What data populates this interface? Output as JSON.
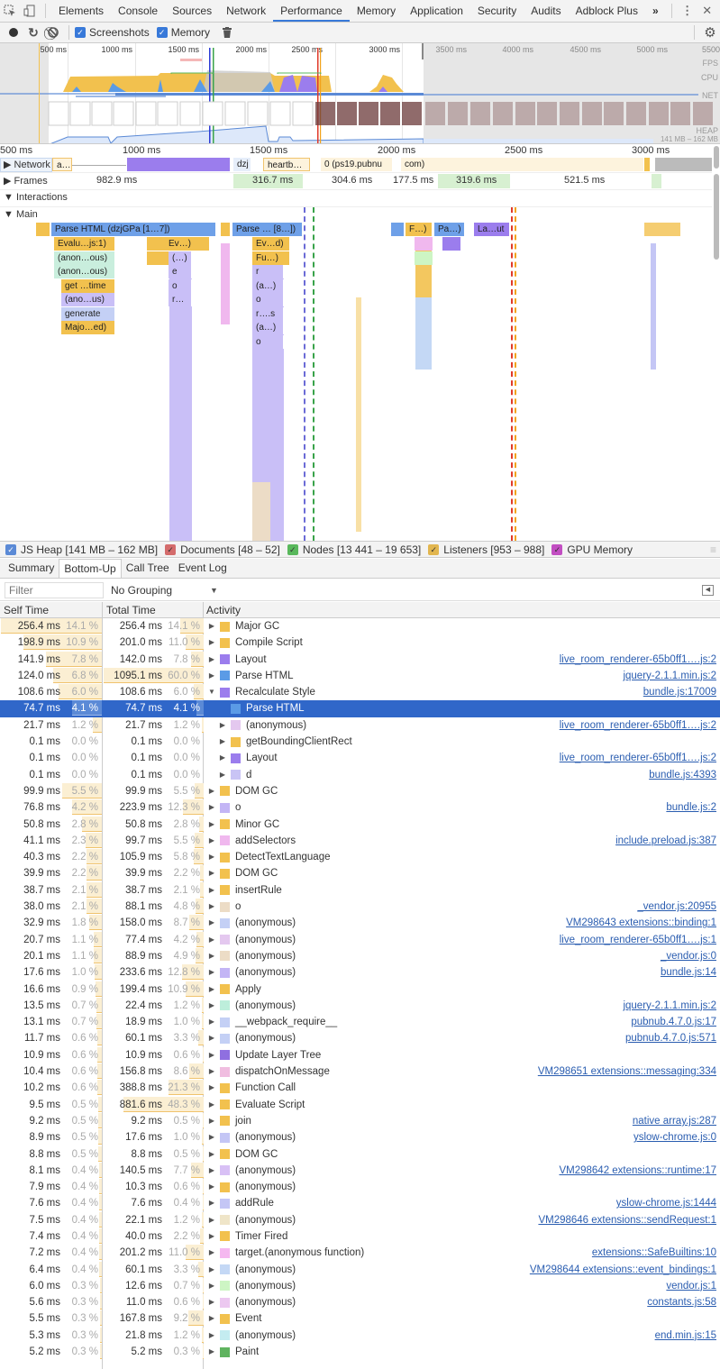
{
  "tabs": {
    "items": [
      "Elements",
      "Console",
      "Sources",
      "Network",
      "Performance",
      "Memory",
      "Application",
      "Security",
      "Audits",
      "Adblock Plus"
    ],
    "active": "Performance",
    "more": "»"
  },
  "toolbar": {
    "screenshots_label": "Screenshots",
    "memory_label": "Memory"
  },
  "overview": {
    "ticks": [
      "500 ms",
      "1000 ms",
      "1500 ms",
      "2000 ms",
      "2500 ms",
      "3000 ms",
      "3500 ms",
      "4000 ms",
      "4500 ms",
      "5000 ms",
      "5500"
    ],
    "labels": {
      "fps": "FPS",
      "cpu": "CPU",
      "net": "NET",
      "heap": "HEAP",
      "heap_range": "141 MB – 162 MB"
    }
  },
  "ruler": {
    "ticks": [
      "500 ms",
      "1000 ms",
      "1500 ms",
      "2000 ms",
      "2500 ms",
      "3000 ms"
    ]
  },
  "tracks": {
    "network": {
      "label": "Network",
      "items": [
        "a…",
        "dzj",
        "heartb…",
        "0 (ps19.pubnu",
        "com)"
      ]
    },
    "frames": {
      "label": "Frames",
      "values": [
        "982.9 ms",
        "316.7 ms",
        "304.6 ms",
        "177.5 ms",
        "319.6 ms",
        "521.5 ms"
      ]
    },
    "interactions": {
      "label": "Interactions"
    },
    "main": {
      "label": "Main"
    }
  },
  "flame": {
    "row1": [
      "Parse HTML (dzjGPa [1…7])",
      "Parse … [8…])",
      "F…)",
      "Pa…)",
      "La…ut"
    ],
    "col1": [
      "Evalu…js:1)",
      "(anon…ous)",
      "(anon…ous)",
      "get …time",
      "(ano…us)",
      "generate",
      "Majo…ed)"
    ],
    "col2": [
      "Ev…)",
      "(…)",
      "e",
      "o",
      "r…"
    ],
    "col3": [
      "Ev…d)",
      "Fu…)",
      "r",
      "(a…)",
      "o",
      "r….s",
      "(a…)",
      "o"
    ]
  },
  "legend": {
    "items": [
      {
        "label": "JS Heap [141 MB – 162 MB]",
        "color": "#5b8ad6"
      },
      {
        "label": "Documents [48 – 52]",
        "color": "#d46c6c"
      },
      {
        "label": "Nodes [13 441 – 19 653]",
        "color": "#59b85c"
      },
      {
        "label": "Listeners [953 – 988]",
        "color": "#e2b64f"
      },
      {
        "label": "GPU Memory",
        "color": "#c24ec2"
      }
    ]
  },
  "subtabs": {
    "items": [
      "Summary",
      "Bottom-Up",
      "Call Tree",
      "Event Log"
    ],
    "active": "Bottom-Up"
  },
  "filter": {
    "placeholder": "Filter",
    "grouping": "No Grouping"
  },
  "table": {
    "headers": {
      "self": "Self Time",
      "total": "Total Time",
      "activity": "Activity"
    },
    "rows": [
      {
        "self": "256.4 ms",
        "self_pct": "14.1 %",
        "total": "256.4 ms",
        "total_pct": "14.1 %",
        "activity": "Major GC",
        "color": "#f2c14e",
        "source": "",
        "expanded": false,
        "indent": 0
      },
      {
        "self": "198.9 ms",
        "self_pct": "10.9 %",
        "total": "201.0 ms",
        "total_pct": "11.0 %",
        "activity": "Compile Script",
        "color": "#f2c14e",
        "source": "",
        "indent": 0
      },
      {
        "self": "141.9 ms",
        "self_pct": "7.8 %",
        "total": "142.0 ms",
        "total_pct": "7.8 %",
        "activity": "Layout",
        "color": "#9b7ded",
        "source": "live_room_renderer-65b0ff1….js:2",
        "indent": 0
      },
      {
        "self": "124.0 ms",
        "self_pct": "6.8 %",
        "total": "1095.1 ms",
        "total_pct": "60.0 %",
        "activity": "Parse HTML",
        "color": "#5b9be6",
        "source": "jquery-2.1.1.min.js:2",
        "indent": 0
      },
      {
        "self": "108.6 ms",
        "self_pct": "6.0 %",
        "total": "108.6 ms",
        "total_pct": "6.0 %",
        "activity": "Recalculate Style",
        "color": "#9b7ded",
        "source": "bundle.js:17009",
        "indent": 0,
        "expanded": true
      },
      {
        "self": "74.7 ms",
        "self_pct": "4.1 %",
        "total": "74.7 ms",
        "total_pct": "4.1 %",
        "activity": "Parse HTML",
        "color": "#5b9be6",
        "source": "",
        "indent": 1,
        "selected": true,
        "leaf": true
      },
      {
        "self": "21.7 ms",
        "self_pct": "1.2 %",
        "total": "21.7 ms",
        "total_pct": "1.2 %",
        "activity": "(anonymous)",
        "color": "#e4c8ef",
        "source": "live_room_renderer-65b0ff1….js:2",
        "indent": 1
      },
      {
        "self": "0.1 ms",
        "self_pct": "0.0 %",
        "total": "0.1 ms",
        "total_pct": "0.0 %",
        "activity": "getBoundingClientRect",
        "color": "#f2c14e",
        "source": "",
        "indent": 1
      },
      {
        "self": "0.1 ms",
        "self_pct": "0.0 %",
        "total": "0.1 ms",
        "total_pct": "0.0 %",
        "activity": "Layout",
        "color": "#9b7ded",
        "source": "live_room_renderer-65b0ff1….js:2",
        "indent": 1
      },
      {
        "self": "0.1 ms",
        "self_pct": "0.0 %",
        "total": "0.1 ms",
        "total_pct": "0.0 %",
        "activity": "d",
        "color": "#c9c4f5",
        "source": "bundle.js:4393",
        "indent": 1
      },
      {
        "self": "99.9 ms",
        "self_pct": "5.5 %",
        "total": "99.9 ms",
        "total_pct": "5.5 %",
        "activity": "DOM GC",
        "color": "#f2c14e",
        "source": "",
        "indent": 0
      },
      {
        "self": "76.8 ms",
        "self_pct": "4.2 %",
        "total": "223.9 ms",
        "total_pct": "12.3 %",
        "activity": "o",
        "color": "#c3b5f5",
        "source": "bundle.js:2",
        "indent": 0
      },
      {
        "self": "50.8 ms",
        "self_pct": "2.8 %",
        "total": "50.8 ms",
        "total_pct": "2.8 %",
        "activity": "Minor GC",
        "color": "#f2c14e",
        "source": "",
        "indent": 0
      },
      {
        "self": "41.1 ms",
        "self_pct": "2.3 %",
        "total": "99.7 ms",
        "total_pct": "5.5 %",
        "activity": "addSelectors",
        "color": "#f0b8ee",
        "source": "include.preload.js:387",
        "indent": 0
      },
      {
        "self": "40.3 ms",
        "self_pct": "2.2 %",
        "total": "105.9 ms",
        "total_pct": "5.8 %",
        "activity": "DetectTextLanguage",
        "color": "#f2c14e",
        "source": "",
        "indent": 0
      },
      {
        "self": "39.9 ms",
        "self_pct": "2.2 %",
        "total": "39.9 ms",
        "total_pct": "2.2 %",
        "activity": "DOM GC",
        "color": "#f2c14e",
        "source": "",
        "indent": 0
      },
      {
        "self": "38.7 ms",
        "self_pct": "2.1 %",
        "total": "38.7 ms",
        "total_pct": "2.1 %",
        "activity": "insertRule",
        "color": "#f2c14e",
        "source": "",
        "indent": 0
      },
      {
        "self": "38.0 ms",
        "self_pct": "2.1 %",
        "total": "88.1 ms",
        "total_pct": "4.8 %",
        "activity": "o",
        "color": "#ecdcc6",
        "source": "_vendor.js:20955",
        "indent": 0
      },
      {
        "self": "32.9 ms",
        "self_pct": "1.8 %",
        "total": "158.0 ms",
        "total_pct": "8.7 %",
        "activity": "(anonymous)",
        "color": "#c4d0f5",
        "source": "VM298643 extensions::binding:1",
        "indent": 0
      },
      {
        "self": "20.7 ms",
        "self_pct": "1.1 %",
        "total": "77.4 ms",
        "total_pct": "4.2 %",
        "activity": "(anonymous)",
        "color": "#e4c8ef",
        "source": "live_room_renderer-65b0ff1….js:1",
        "indent": 0
      },
      {
        "self": "20.1 ms",
        "self_pct": "1.1 %",
        "total": "88.9 ms",
        "total_pct": "4.9 %",
        "activity": "(anonymous)",
        "color": "#ecdcc6",
        "source": "_vendor.js:0",
        "indent": 0
      },
      {
        "self": "17.6 ms",
        "self_pct": "1.0 %",
        "total": "233.6 ms",
        "total_pct": "12.8 %",
        "activity": "(anonymous)",
        "color": "#c3b5f5",
        "source": "bundle.js:14",
        "indent": 0
      },
      {
        "self": "16.6 ms",
        "self_pct": "0.9 %",
        "total": "199.4 ms",
        "total_pct": "10.9 %",
        "activity": "Apply",
        "color": "#f2c14e",
        "source": "",
        "indent": 0
      },
      {
        "self": "13.5 ms",
        "self_pct": "0.7 %",
        "total": "22.4 ms",
        "total_pct": "1.2 %",
        "activity": "(anonymous)",
        "color": "#bdeedb",
        "source": "jquery-2.1.1.min.js:2",
        "indent": 0
      },
      {
        "self": "13.1 ms",
        "self_pct": "0.7 %",
        "total": "18.9 ms",
        "total_pct": "1.0 %",
        "activity": "__webpack_require__",
        "color": "#c4d0f5",
        "source": "pubnub.4.7.0.js:17",
        "indent": 0
      },
      {
        "self": "11.7 ms",
        "self_pct": "0.6 %",
        "total": "60.1 ms",
        "total_pct": "3.3 %",
        "activity": "(anonymous)",
        "color": "#c4d0f5",
        "source": "pubnub.4.7.0.js:571",
        "indent": 0
      },
      {
        "self": "10.9 ms",
        "self_pct": "0.6 %",
        "total": "10.9 ms",
        "total_pct": "0.6 %",
        "activity": "Update Layer Tree",
        "color": "#8f6fe0",
        "source": "",
        "indent": 0
      },
      {
        "self": "10.4 ms",
        "self_pct": "0.6 %",
        "total": "156.8 ms",
        "total_pct": "8.6 %",
        "activity": "dispatchOnMessage",
        "color": "#f0bde0",
        "source": "VM298651 extensions::messaging:334",
        "indent": 0
      },
      {
        "self": "10.2 ms",
        "self_pct": "0.6 %",
        "total": "388.8 ms",
        "total_pct": "21.3 %",
        "activity": "Function Call",
        "color": "#f2c14e",
        "source": "",
        "indent": 0
      },
      {
        "self": "9.5 ms",
        "self_pct": "0.5 %",
        "total": "881.6 ms",
        "total_pct": "48.3 %",
        "activity": "Evaluate Script",
        "color": "#f2c14e",
        "source": "",
        "indent": 0
      },
      {
        "self": "9.2 ms",
        "self_pct": "0.5 %",
        "total": "9.2 ms",
        "total_pct": "0.5 %",
        "activity": "join",
        "color": "#f2c14e",
        "source": "native array.js:287",
        "indent": 0
      },
      {
        "self": "8.9 ms",
        "self_pct": "0.5 %",
        "total": "17.6 ms",
        "total_pct": "1.0 %",
        "activity": "(anonymous)",
        "color": "#c4c6f5",
        "source": "yslow-chrome.js:0",
        "indent": 0
      },
      {
        "self": "8.8 ms",
        "self_pct": "0.5 %",
        "total": "8.8 ms",
        "total_pct": "0.5 %",
        "activity": "DOM GC",
        "color": "#f2c14e",
        "source": "",
        "indent": 0
      },
      {
        "self": "8.1 ms",
        "self_pct": "0.4 %",
        "total": "140.5 ms",
        "total_pct": "7.7 %",
        "activity": "(anonymous)",
        "color": "#d8c0f5",
        "source": "VM298642 extensions::runtime:17",
        "indent": 0
      },
      {
        "self": "7.9 ms",
        "self_pct": "0.4 %",
        "total": "10.3 ms",
        "total_pct": "0.6 %",
        "activity": "(anonymous)",
        "color": "#f2c14e",
        "source": "",
        "indent": 0
      },
      {
        "self": "7.6 ms",
        "self_pct": "0.4 %",
        "total": "7.6 ms",
        "total_pct": "0.4 %",
        "activity": "addRule",
        "color": "#c4c6f5",
        "source": "yslow-chrome.js:1444",
        "indent": 0
      },
      {
        "self": "7.5 ms",
        "self_pct": "0.4 %",
        "total": "22.1 ms",
        "total_pct": "1.2 %",
        "activity": "(anonymous)",
        "color": "#efe5c8",
        "source": "VM298646 extensions::sendRequest:1",
        "indent": 0
      },
      {
        "self": "7.4 ms",
        "self_pct": "0.4 %",
        "total": "40.0 ms",
        "total_pct": "2.2 %",
        "activity": "Timer Fired",
        "color": "#f2c14e",
        "source": "",
        "indent": 0
      },
      {
        "self": "7.2 ms",
        "self_pct": "0.4 %",
        "total": "201.2 ms",
        "total_pct": "11.0 %",
        "activity": "target.(anonymous function)",
        "color": "#f5b8f0",
        "source": "extensions::SafeBuiltins:10",
        "indent": 0
      },
      {
        "self": "6.4 ms",
        "self_pct": "0.4 %",
        "total": "60.1 ms",
        "total_pct": "3.3 %",
        "activity": "(anonymous)",
        "color": "#c4d8f5",
        "source": "VM298644 extensions::event_bindings:1",
        "indent": 0
      },
      {
        "self": "6.0 ms",
        "self_pct": "0.3 %",
        "total": "12.6 ms",
        "total_pct": "0.7 %",
        "activity": "(anonymous)",
        "color": "#cdf5c4",
        "source": "vendor.js:1",
        "indent": 0
      },
      {
        "self": "5.6 ms",
        "self_pct": "0.3 %",
        "total": "11.0 ms",
        "total_pct": "0.6 %",
        "activity": "(anonymous)",
        "color": "#ecc8f0",
        "source": "constants.js:58",
        "indent": 0
      },
      {
        "self": "5.5 ms",
        "self_pct": "0.3 %",
        "total": "167.8 ms",
        "total_pct": "9.2 %",
        "activity": "Event",
        "color": "#f2c14e",
        "source": "",
        "indent": 0
      },
      {
        "self": "5.3 ms",
        "self_pct": "0.3 %",
        "total": "21.8 ms",
        "total_pct": "1.2 %",
        "activity": "(anonymous)",
        "color": "#c4ecf0",
        "source": "end.min.js:15",
        "indent": 0
      },
      {
        "self": "5.2 ms",
        "self_pct": "0.3 %",
        "total": "5.2 ms",
        "total_pct": "0.3 %",
        "activity": "Paint",
        "color": "#5fb35f",
        "source": "",
        "indent": 0
      }
    ]
  }
}
